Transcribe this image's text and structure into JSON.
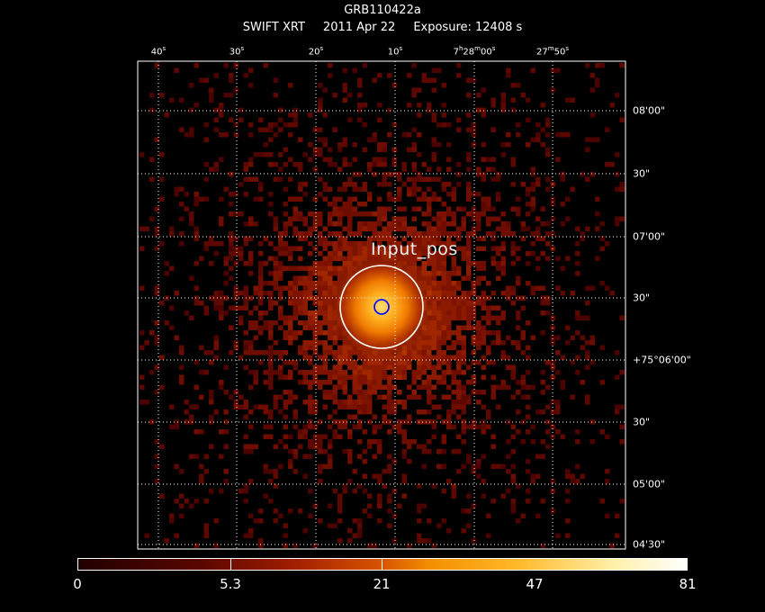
{
  "header": {
    "object": "GRB110422a",
    "telescope": "SWIFT XRT",
    "date": "2011 Apr 22",
    "exposure": "Exposure: 12408 s"
  },
  "ra_axis": {
    "labels": [
      {
        "main": "40",
        "sup": "s"
      },
      {
        "main": "30",
        "sup": "s"
      },
      {
        "main": "20",
        "sup": "s"
      },
      {
        "main": "10",
        "sup": "s"
      },
      {
        "main": "7<sup>h</sup>28<sup>m</sup>00",
        "sup": "s",
        "html": true
      },
      {
        "main": "27<sup>m</sup>50",
        "sup": "s",
        "html": true
      }
    ]
  },
  "dec_axis": {
    "labels": [
      "08'00\"",
      "30\"",
      "07'00\"",
      "30\"",
      "+75°06'00\"",
      "30\"",
      "05'00\"",
      "04'30\""
    ]
  },
  "annotation": {
    "label": "Input_pos"
  },
  "colorbar": {
    "tick_labels": [
      "0",
      "5.3",
      "21",
      "47",
      "81"
    ]
  },
  "colors": {
    "background": "#000000",
    "annotation_circle": "#ffffff",
    "input_circle": "#1010ff",
    "grid": "#ffffff"
  }
}
